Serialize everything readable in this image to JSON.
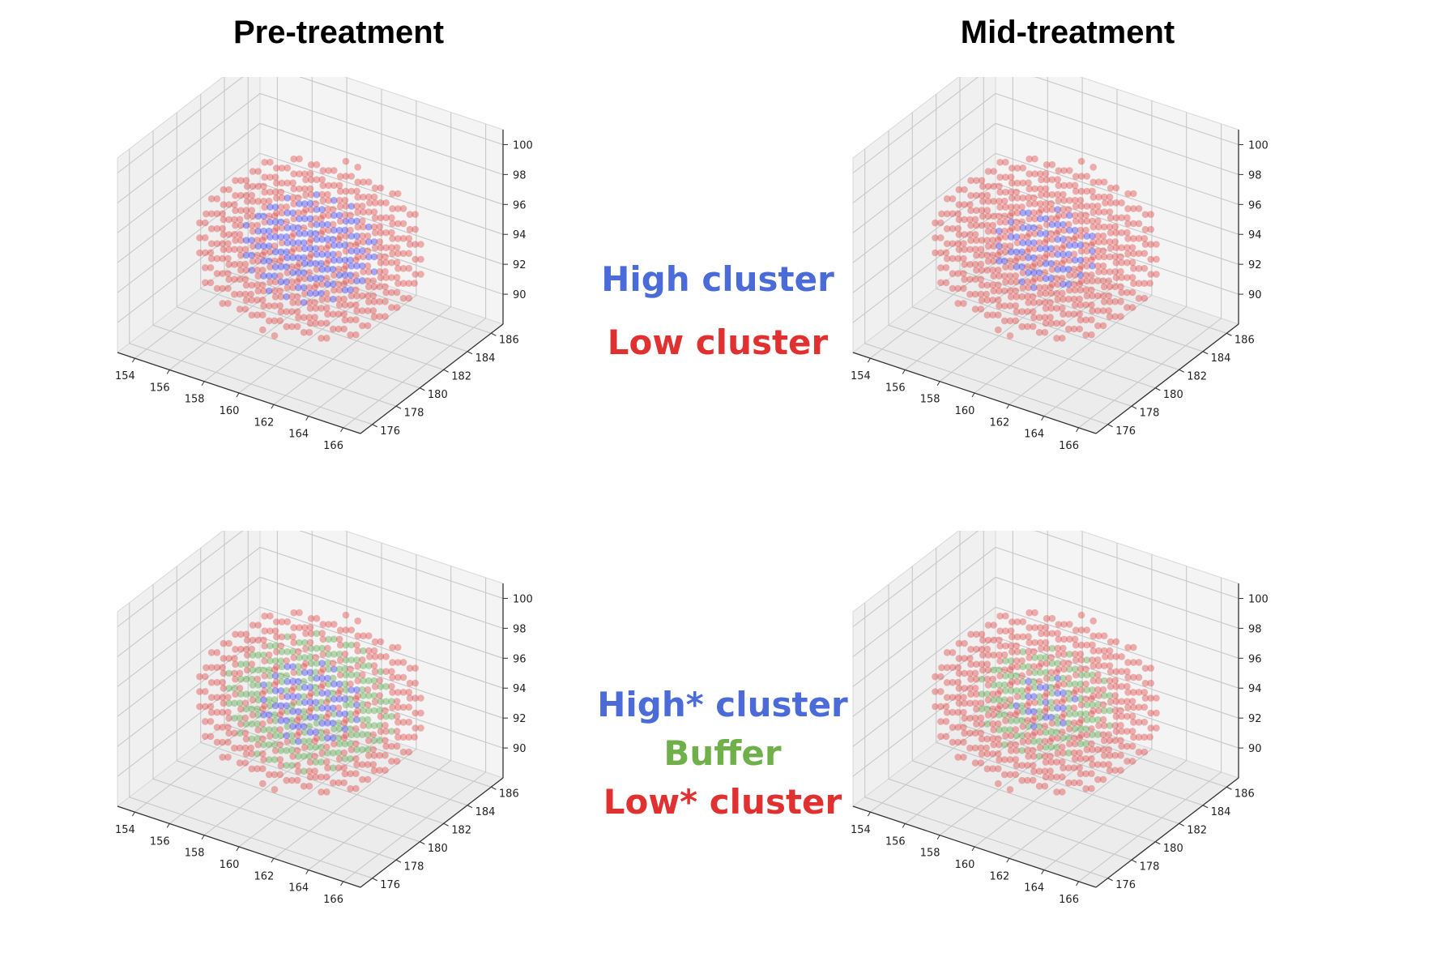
{
  "titles": {
    "left": "Pre-treatment",
    "right": "Mid-treatment"
  },
  "legends": {
    "top": [
      {
        "text": "High cluster",
        "color": "#4a6bd8"
      },
      {
        "text": "Low cluster",
        "color": "#e03030"
      }
    ],
    "bottom": [
      {
        "text": "High* cluster",
        "color": "#4a6bd8"
      },
      {
        "text": "Buffer",
        "color": "#6fb04a"
      },
      {
        "text": "Low* cluster",
        "color": "#e03030"
      }
    ]
  },
  "colors": {
    "high": "#3a3af0",
    "low": "#e04848",
    "buffer": "#5aa84a",
    "pane": "#f2f2f2",
    "grid": "#c8c8c8"
  },
  "chart_data": [
    {
      "type": "scatter",
      "subtype": "3d-scatter",
      "panel": "pre-treatment-two-cluster",
      "x_ticks": [
        "154",
        "156",
        "158",
        "160",
        "162",
        "164",
        "166"
      ],
      "y_ticks": [
        "176",
        "178",
        "180",
        "182",
        "184",
        "186"
      ],
      "z_ticks": [
        "90",
        "92",
        "94",
        "96",
        "98",
        "100"
      ],
      "xlim": [
        153,
        167
      ],
      "ylim": [
        175,
        187
      ],
      "zlim": [
        88,
        101
      ],
      "center": [
        160,
        181,
        94
      ],
      "radii": [
        6,
        5,
        5
      ],
      "series": [
        {
          "name": "High cluster",
          "color": "#3a3af0",
          "inner_radius_fraction": 0.6
        },
        {
          "name": "Low cluster",
          "color": "#e04848"
        }
      ]
    },
    {
      "type": "scatter",
      "subtype": "3d-scatter",
      "panel": "mid-treatment-two-cluster",
      "x_ticks": [
        "154",
        "156",
        "158",
        "160",
        "162",
        "164",
        "166"
      ],
      "y_ticks": [
        "176",
        "178",
        "180",
        "182",
        "184",
        "186"
      ],
      "z_ticks": [
        "90",
        "92",
        "94",
        "96",
        "98",
        "100"
      ],
      "xlim": [
        153,
        167
      ],
      "ylim": [
        175,
        187
      ],
      "zlim": [
        88,
        101
      ],
      "center": [
        160,
        181,
        94
      ],
      "radii": [
        6,
        5,
        5
      ],
      "series": [
        {
          "name": "High cluster",
          "color": "#3a3af0",
          "inner_radius_fraction": 0.45
        },
        {
          "name": "Low cluster",
          "color": "#e04848"
        }
      ]
    },
    {
      "type": "scatter",
      "subtype": "3d-scatter",
      "panel": "pre-treatment-three-cluster",
      "x_ticks": [
        "154",
        "156",
        "158",
        "160",
        "162",
        "164",
        "166"
      ],
      "y_ticks": [
        "176",
        "178",
        "180",
        "182",
        "184",
        "186"
      ],
      "z_ticks": [
        "90",
        "92",
        "94",
        "96",
        "98",
        "100"
      ],
      "xlim": [
        153,
        167
      ],
      "ylim": [
        175,
        187
      ],
      "zlim": [
        88,
        101
      ],
      "center": [
        160,
        181,
        94
      ],
      "radii": [
        6,
        5,
        5
      ],
      "series": [
        {
          "name": "High* cluster",
          "color": "#3a3af0",
          "inner_radius_fraction": 0.45
        },
        {
          "name": "Buffer",
          "color": "#5aa84a",
          "inner_radius_fraction": 0.75
        },
        {
          "name": "Low* cluster",
          "color": "#e04848"
        }
      ]
    },
    {
      "type": "scatter",
      "subtype": "3d-scatter",
      "panel": "mid-treatment-three-cluster",
      "x_ticks": [
        "154",
        "156",
        "158",
        "160",
        "162",
        "164",
        "166"
      ],
      "y_ticks": [
        "176",
        "178",
        "180",
        "182",
        "184",
        "186"
      ],
      "z_ticks": [
        "90",
        "92",
        "94",
        "96",
        "98",
        "100"
      ],
      "xlim": [
        153,
        167
      ],
      "ylim": [
        175,
        187
      ],
      "zlim": [
        88,
        101
      ],
      "center": [
        160,
        181,
        94
      ],
      "radii": [
        6,
        5,
        5
      ],
      "series": [
        {
          "name": "High* cluster",
          "color": "#3a3af0",
          "inner_radius_fraction": 0.3
        },
        {
          "name": "Buffer",
          "color": "#5aa84a",
          "inner_radius_fraction": 0.62
        },
        {
          "name": "Low* cluster",
          "color": "#e04848"
        }
      ]
    }
  ]
}
